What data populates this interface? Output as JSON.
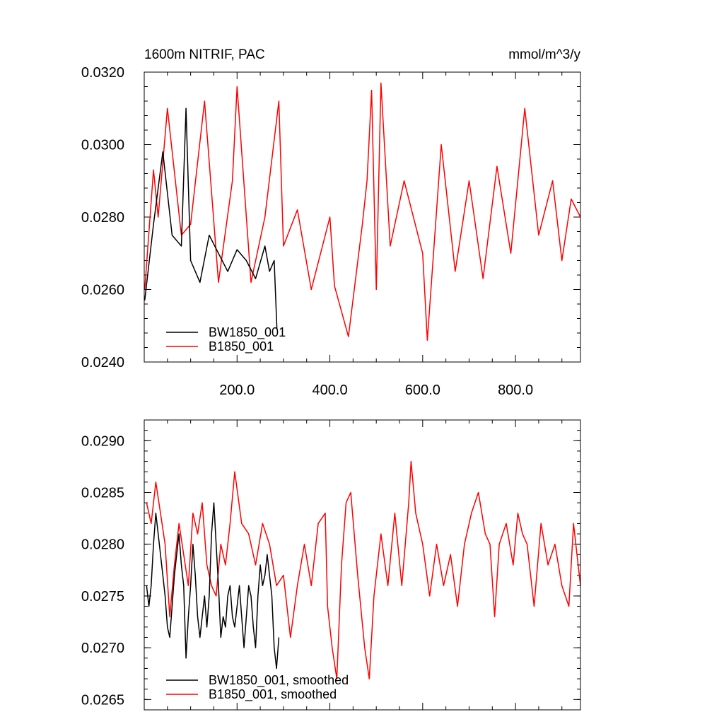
{
  "chart_data": [
    {
      "type": "line",
      "title": "1600m NITRIF, PAC",
      "units": "mmol/m^3/y",
      "xlim": [
        0,
        940
      ],
      "ylim": [
        0.024,
        0.032
      ],
      "x_ticks": [
        200,
        400,
        600,
        800
      ],
      "x_tick_labels": [
        "200.0",
        "400.0",
        "600.0",
        "800.0"
      ],
      "y_ticks": [
        0.024,
        0.026,
        0.028,
        0.03,
        0.032
      ],
      "y_tick_labels": [
        "0.0240",
        "0.0260",
        "0.0280",
        "0.0300",
        "0.0320"
      ],
      "legend_position": "lower-left",
      "series": [
        {
          "name": "BW1850_001",
          "color": "#000000",
          "x": [
            1,
            20,
            40,
            60,
            80,
            90,
            100,
            120,
            140,
            160,
            180,
            200,
            220,
            240,
            260,
            270,
            280,
            286
          ],
          "values": [
            0.0257,
            0.0278,
            0.0298,
            0.0275,
            0.0272,
            0.031,
            0.0268,
            0.0262,
            0.0275,
            0.027,
            0.0265,
            0.0271,
            0.0268,
            0.0263,
            0.0272,
            0.0265,
            0.0268,
            0.0249
          ]
        },
        {
          "name": "B1850_001",
          "color": "#ff0000",
          "x": [
            1,
            20,
            30,
            50,
            80,
            100,
            130,
            160,
            190,
            200,
            230,
            260,
            290,
            300,
            330,
            360,
            400,
            410,
            440,
            470,
            480,
            490,
            500,
            510,
            530,
            560,
            600,
            610,
            640,
            670,
            700,
            730,
            760,
            790,
            820,
            850,
            880,
            900,
            920,
            940
          ],
          "values": [
            0.026,
            0.0293,
            0.028,
            0.031,
            0.0275,
            0.0278,
            0.0312,
            0.0262,
            0.029,
            0.0316,
            0.0262,
            0.028,
            0.0312,
            0.0272,
            0.0282,
            0.026,
            0.028,
            0.0261,
            0.0247,
            0.0278,
            0.029,
            0.0315,
            0.026,
            0.0317,
            0.0272,
            0.029,
            0.027,
            0.0246,
            0.03,
            0.0265,
            0.029,
            0.0263,
            0.0294,
            0.027,
            0.031,
            0.0275,
            0.029,
            0.0268,
            0.0285,
            0.028
          ]
        }
      ]
    },
    {
      "type": "line",
      "xlim": [
        0,
        940
      ],
      "ylim": [
        0.0264,
        0.0292
      ],
      "x_ticks": [
        200,
        400,
        600,
        800
      ],
      "y_ticks": [
        0.0265,
        0.027,
        0.0275,
        0.028,
        0.0285,
        0.029
      ],
      "y_tick_labels": [
        "0.0265",
        "0.0270",
        "0.0275",
        "0.0280",
        "0.0285",
        "0.0290"
      ],
      "legend_position": "lower-left",
      "series": [
        {
          "name": "BW1850_001, smoothed",
          "color": "#000000",
          "x": [
            5,
            10,
            15,
            20,
            25,
            30,
            35,
            40,
            45,
            50,
            55,
            60,
            65,
            70,
            75,
            80,
            85,
            90,
            95,
            100,
            105,
            110,
            115,
            120,
            125,
            130,
            135,
            140,
            145,
            150,
            155,
            160,
            165,
            170,
            175,
            180,
            185,
            190,
            195,
            200,
            205,
            210,
            215,
            220,
            225,
            230,
            235,
            240,
            245,
            250,
            255,
            260,
            265,
            270,
            275,
            280,
            285,
            290
          ],
          "values": [
            0.0276,
            0.0274,
            0.0276,
            0.028,
            0.0283,
            0.0281,
            0.0279,
            0.0277,
            0.0275,
            0.0272,
            0.0271,
            0.0274,
            0.0277,
            0.0279,
            0.0281,
            0.0278,
            0.0276,
            0.0269,
            0.0273,
            0.0276,
            0.028,
            0.0277,
            0.0273,
            0.0271,
            0.0273,
            0.0275,
            0.0272,
            0.0275,
            0.0281,
            0.0284,
            0.028,
            0.0276,
            0.0271,
            0.0273,
            0.0272,
            0.0275,
            0.0276,
            0.0273,
            0.0272,
            0.0274,
            0.0276,
            0.0273,
            0.027,
            0.0273,
            0.0276,
            0.0275,
            0.0272,
            0.027,
            0.0275,
            0.0278,
            0.0276,
            0.0277,
            0.0279,
            0.0277,
            0.0275,
            0.027,
            0.0268,
            0.0271
          ]
        },
        {
          "name": "B1850_001, smoothed",
          "color": "#ff0000",
          "x": [
            5,
            15,
            25,
            35,
            45,
            55,
            65,
            75,
            85,
            95,
            105,
            115,
            125,
            135,
            145,
            155,
            165,
            175,
            185,
            195,
            210,
            225,
            240,
            255,
            270,
            285,
            300,
            315,
            330,
            345,
            360,
            375,
            390,
            395,
            405,
            415,
            425,
            435,
            445,
            460,
            475,
            485,
            495,
            510,
            525,
            540,
            555,
            570,
            575,
            585,
            600,
            615,
            630,
            645,
            660,
            675,
            690,
            705,
            720,
            735,
            745,
            755,
            765,
            780,
            795,
            805,
            815,
            825,
            840,
            855,
            870,
            885,
            900,
            915,
            925,
            935,
            940
          ],
          "values": [
            0.0284,
            0.0282,
            0.0286,
            0.0283,
            0.028,
            0.0273,
            0.0278,
            0.0282,
            0.0279,
            0.0276,
            0.0283,
            0.0281,
            0.0284,
            0.0278,
            0.0276,
            0.0275,
            0.028,
            0.0278,
            0.0282,
            0.0287,
            0.0282,
            0.0281,
            0.0278,
            0.0282,
            0.028,
            0.0276,
            0.0277,
            0.0271,
            0.0276,
            0.028,
            0.0276,
            0.0282,
            0.0283,
            0.0274,
            0.027,
            0.0267,
            0.0278,
            0.0284,
            0.0285,
            0.0277,
            0.027,
            0.0267,
            0.0275,
            0.0281,
            0.0276,
            0.0283,
            0.0276,
            0.0284,
            0.0288,
            0.0283,
            0.028,
            0.0275,
            0.028,
            0.0276,
            0.0279,
            0.0274,
            0.028,
            0.0283,
            0.0285,
            0.0281,
            0.028,
            0.0273,
            0.028,
            0.0282,
            0.0278,
            0.0283,
            0.0281,
            0.028,
            0.0274,
            0.0282,
            0.0278,
            0.028,
            0.0276,
            0.0274,
            0.0282,
            0.0278,
            0.0276
          ]
        }
      ]
    }
  ]
}
